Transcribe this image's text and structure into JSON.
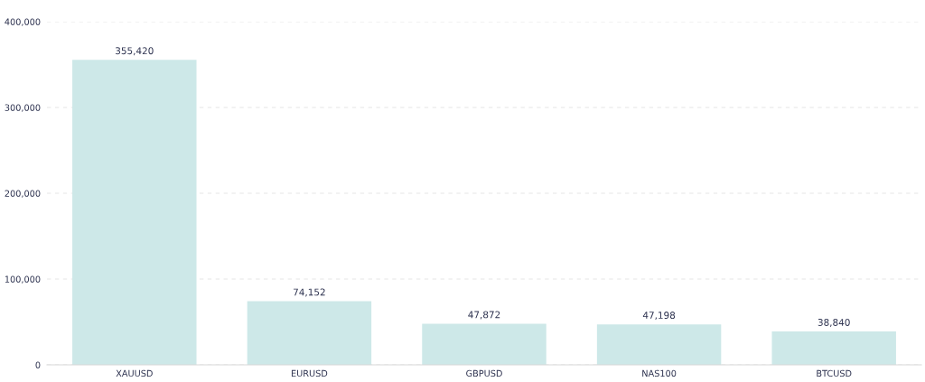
{
  "chart_data": {
    "type": "bar",
    "categories": [
      "XAUUSD",
      "EURUSD",
      "GBPUSD",
      "NAS100",
      "BTCUSD"
    ],
    "values": [
      355420,
      74152,
      47872,
      47198,
      38840
    ],
    "color": "#cde8e8",
    "ylim": [
      0,
      400000
    ],
    "yticks": [
      {
        "value": 0,
        "label": "0"
      },
      {
        "value": 100000,
        "label": "100,000"
      },
      {
        "value": 200000,
        "label": "200,000"
      },
      {
        "value": 300000,
        "label": "300,000"
      },
      {
        "value": 400000,
        "label": "400,000"
      }
    ],
    "value_labels": [
      "355,420",
      "74,152",
      "47,872",
      "47,198",
      "38,840"
    ],
    "grid": "y"
  }
}
